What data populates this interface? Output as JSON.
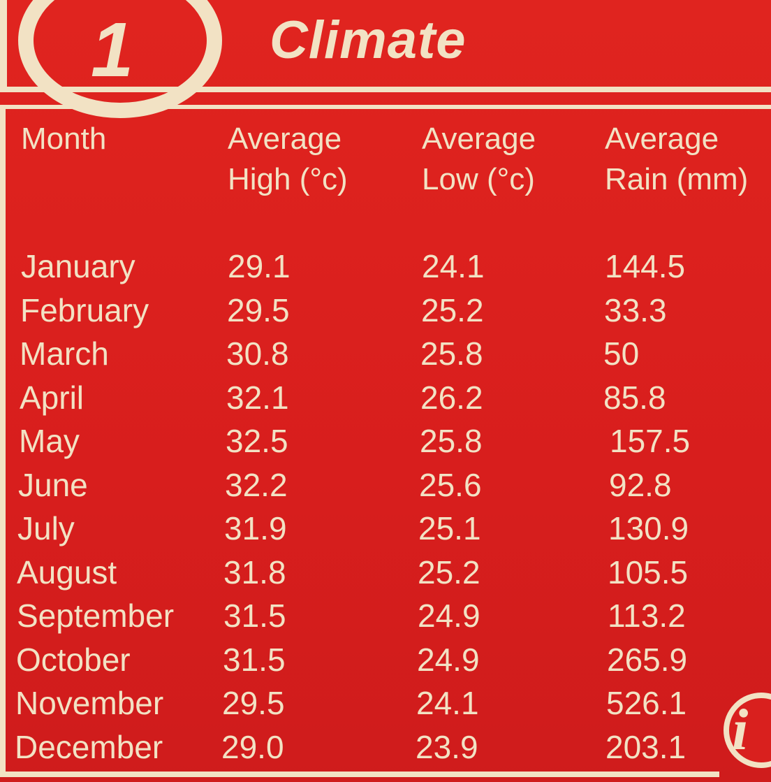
{
  "header": {
    "number": "1",
    "title": "Climate"
  },
  "table": {
    "columns": [
      "Month",
      "Average\nHigh (°c)",
      "Average\nLow (°c)",
      "Average\nRain (mm)"
    ],
    "rows": [
      [
        "January",
        "29.1",
        "24.1",
        "144.5"
      ],
      [
        "February",
        "29.5",
        "25.2",
        "33.3"
      ],
      [
        "March",
        "30.8",
        "25.8",
        "50"
      ],
      [
        "April",
        "32.1",
        "26.2",
        "85.8"
      ],
      [
        "May",
        "32.5",
        "25.8",
        "157.5"
      ],
      [
        "June",
        "32.2",
        "25.6",
        "92.8"
      ],
      [
        "July",
        "31.9",
        "25.1",
        "130.9"
      ],
      [
        "August",
        "31.8",
        "25.2",
        "105.5"
      ],
      [
        "September",
        "31.5",
        "24.9",
        "113.2"
      ],
      [
        "October",
        "31.5",
        "24.9",
        "265.9"
      ],
      [
        "November",
        "29.5",
        "24.1",
        "526.1"
      ],
      [
        "December",
        "29.0",
        "23.9",
        "203.1"
      ]
    ]
  },
  "info_icon": "i"
}
